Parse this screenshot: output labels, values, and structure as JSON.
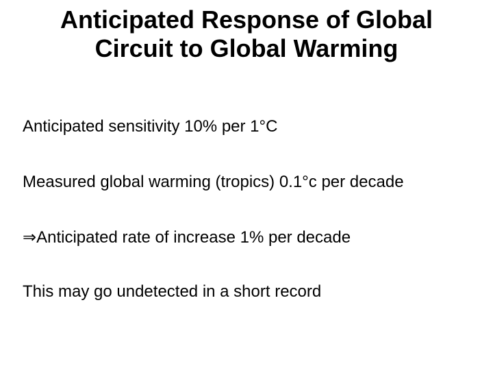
{
  "slide": {
    "title_line_1": "Anticipated Response of Global",
    "title_line_2": "Circuit to Global Warming",
    "bullets": [
      {
        "text": "Anticipated sensitivity 10% per 1°C"
      },
      {
        "text": "Measured global warming (tropics) 0.1°c per decade"
      },
      {
        "prefix_symbol": "⇒",
        "text": "Anticipated rate of increase 1% per decade"
      },
      {
        "text": "This may go undetected in a short record"
      }
    ]
  }
}
